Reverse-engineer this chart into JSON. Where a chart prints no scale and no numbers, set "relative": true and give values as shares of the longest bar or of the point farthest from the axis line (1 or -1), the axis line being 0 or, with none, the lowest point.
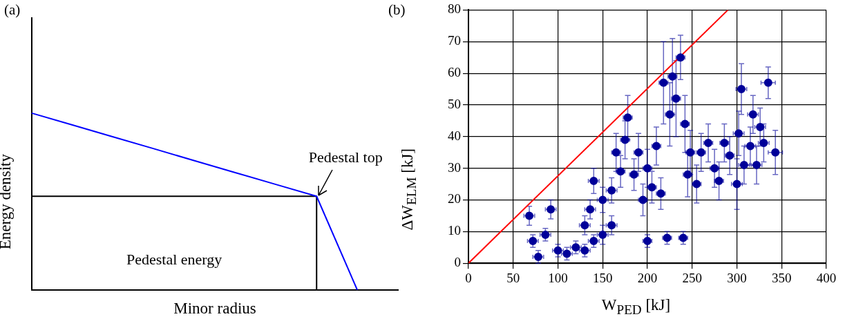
{
  "chart_data": [
    {
      "type": "line",
      "title": "(a)",
      "xlabel": "Minor radius",
      "ylabel": "Energy density",
      "relative": true,
      "categories": [
        null,
        null,
        null,
        null,
        null,
        null,
        null,
        null,
        null,
        null
      ],
      "tick_labels": false,
      "grid": false,
      "legend": false,
      "line_style": "solid",
      "annotations": [
        "Pedestal top",
        "Pedestal energy"
      ],
      "series": [
        {
          "color": "#0000ff",
          "values": [
            1,
            0.933,
            0.866,
            0.799,
            0.731,
            0.664,
            0.597,
            0.53,
            0,
            null
          ],
          "marker": "none"
        },
        {
          "type": "step",
          "color": "#000000",
          "values": [
            0.53,
            0.53,
            0.53,
            0.53,
            0.53,
            0.53,
            0.53,
            0.53,
            0,
            null
          ],
          "marker": "none"
        }
      ]
    },
    {
      "type": "scatter",
      "title": "(b)",
      "xlabel": "W$_{PED}$ [kJ]",
      "ylabel": "ΔW$_{ELM}$ [kJ]",
      "xlim": [
        0,
        400
      ],
      "ylim": [
        0,
        80
      ],
      "xticks": [
        0,
        50,
        100,
        150,
        200,
        250,
        300,
        350,
        400
      ],
      "yticks": [
        0,
        10,
        20,
        30,
        40,
        50,
        60,
        70,
        80
      ],
      "grid": true,
      "legend": false,
      "series": [
        {
          "color": "#000099",
          "marker": "circle",
          "x": [
            68,
            72,
            78,
            86,
            92,
            100,
            110,
            120,
            130,
            130,
            136,
            140,
            140,
            150,
            150,
            160,
            160,
            165,
            170,
            175,
            178,
            185,
            190,
            195,
            200,
            200,
            205,
            210,
            215,
            218,
            222,
            225,
            228,
            232,
            237,
            240,
            242,
            245,
            248,
            255,
            260,
            268,
            275,
            280,
            286,
            292,
            300,
            302,
            305,
            308,
            315,
            318,
            322,
            326,
            330,
            335,
            343
          ],
          "values": [
            15,
            7,
            2,
            9,
            17,
            4,
            3,
            5,
            4,
            12,
            17,
            26,
            7,
            9,
            20,
            12,
            23,
            35,
            29,
            39,
            46,
            28,
            35,
            20,
            7,
            30,
            24,
            37,
            22,
            57,
            8,
            47,
            59,
            52,
            65,
            8,
            44,
            28,
            35,
            25,
            35,
            38,
            30,
            26,
            38,
            34,
            25,
            41,
            55,
            31,
            37,
            47,
            31,
            43,
            38,
            57,
            35
          ],
          "errors": [
            3,
            2,
            2,
            2,
            3,
            2,
            2,
            2,
            2,
            3,
            3,
            4,
            2,
            3,
            4,
            3,
            4,
            6,
            5,
            6,
            7,
            5,
            6,
            5,
            2,
            6,
            5,
            6,
            5,
            13,
            2,
            10,
            12,
            12,
            7,
            2,
            9,
            7,
            7,
            6,
            6,
            6,
            6,
            6,
            6,
            6,
            8,
            7,
            8,
            6,
            6,
            6,
            6,
            6,
            6,
            5,
            7
          ],
          "xerrors": [
            6,
            6,
            6,
            6,
            6,
            6,
            6,
            6,
            6,
            6,
            6,
            6,
            6,
            6,
            6,
            6,
            6,
            5,
            5,
            5,
            5,
            5,
            5,
            5,
            5,
            5,
            5,
            5,
            5,
            5,
            5,
            5,
            5,
            5,
            5,
            5,
            5,
            5,
            5,
            5,
            5,
            5,
            5,
            5,
            5,
            5,
            6,
            6,
            6,
            6,
            6,
            6,
            6,
            6,
            6,
            8,
            8
          ]
        },
        {
          "type": "line",
          "color": "#ff0000",
          "marker": "none",
          "line_style": "solid",
          "x": [
            0,
            290
          ],
          "values": [
            0,
            80
          ]
        }
      ]
    }
  ]
}
